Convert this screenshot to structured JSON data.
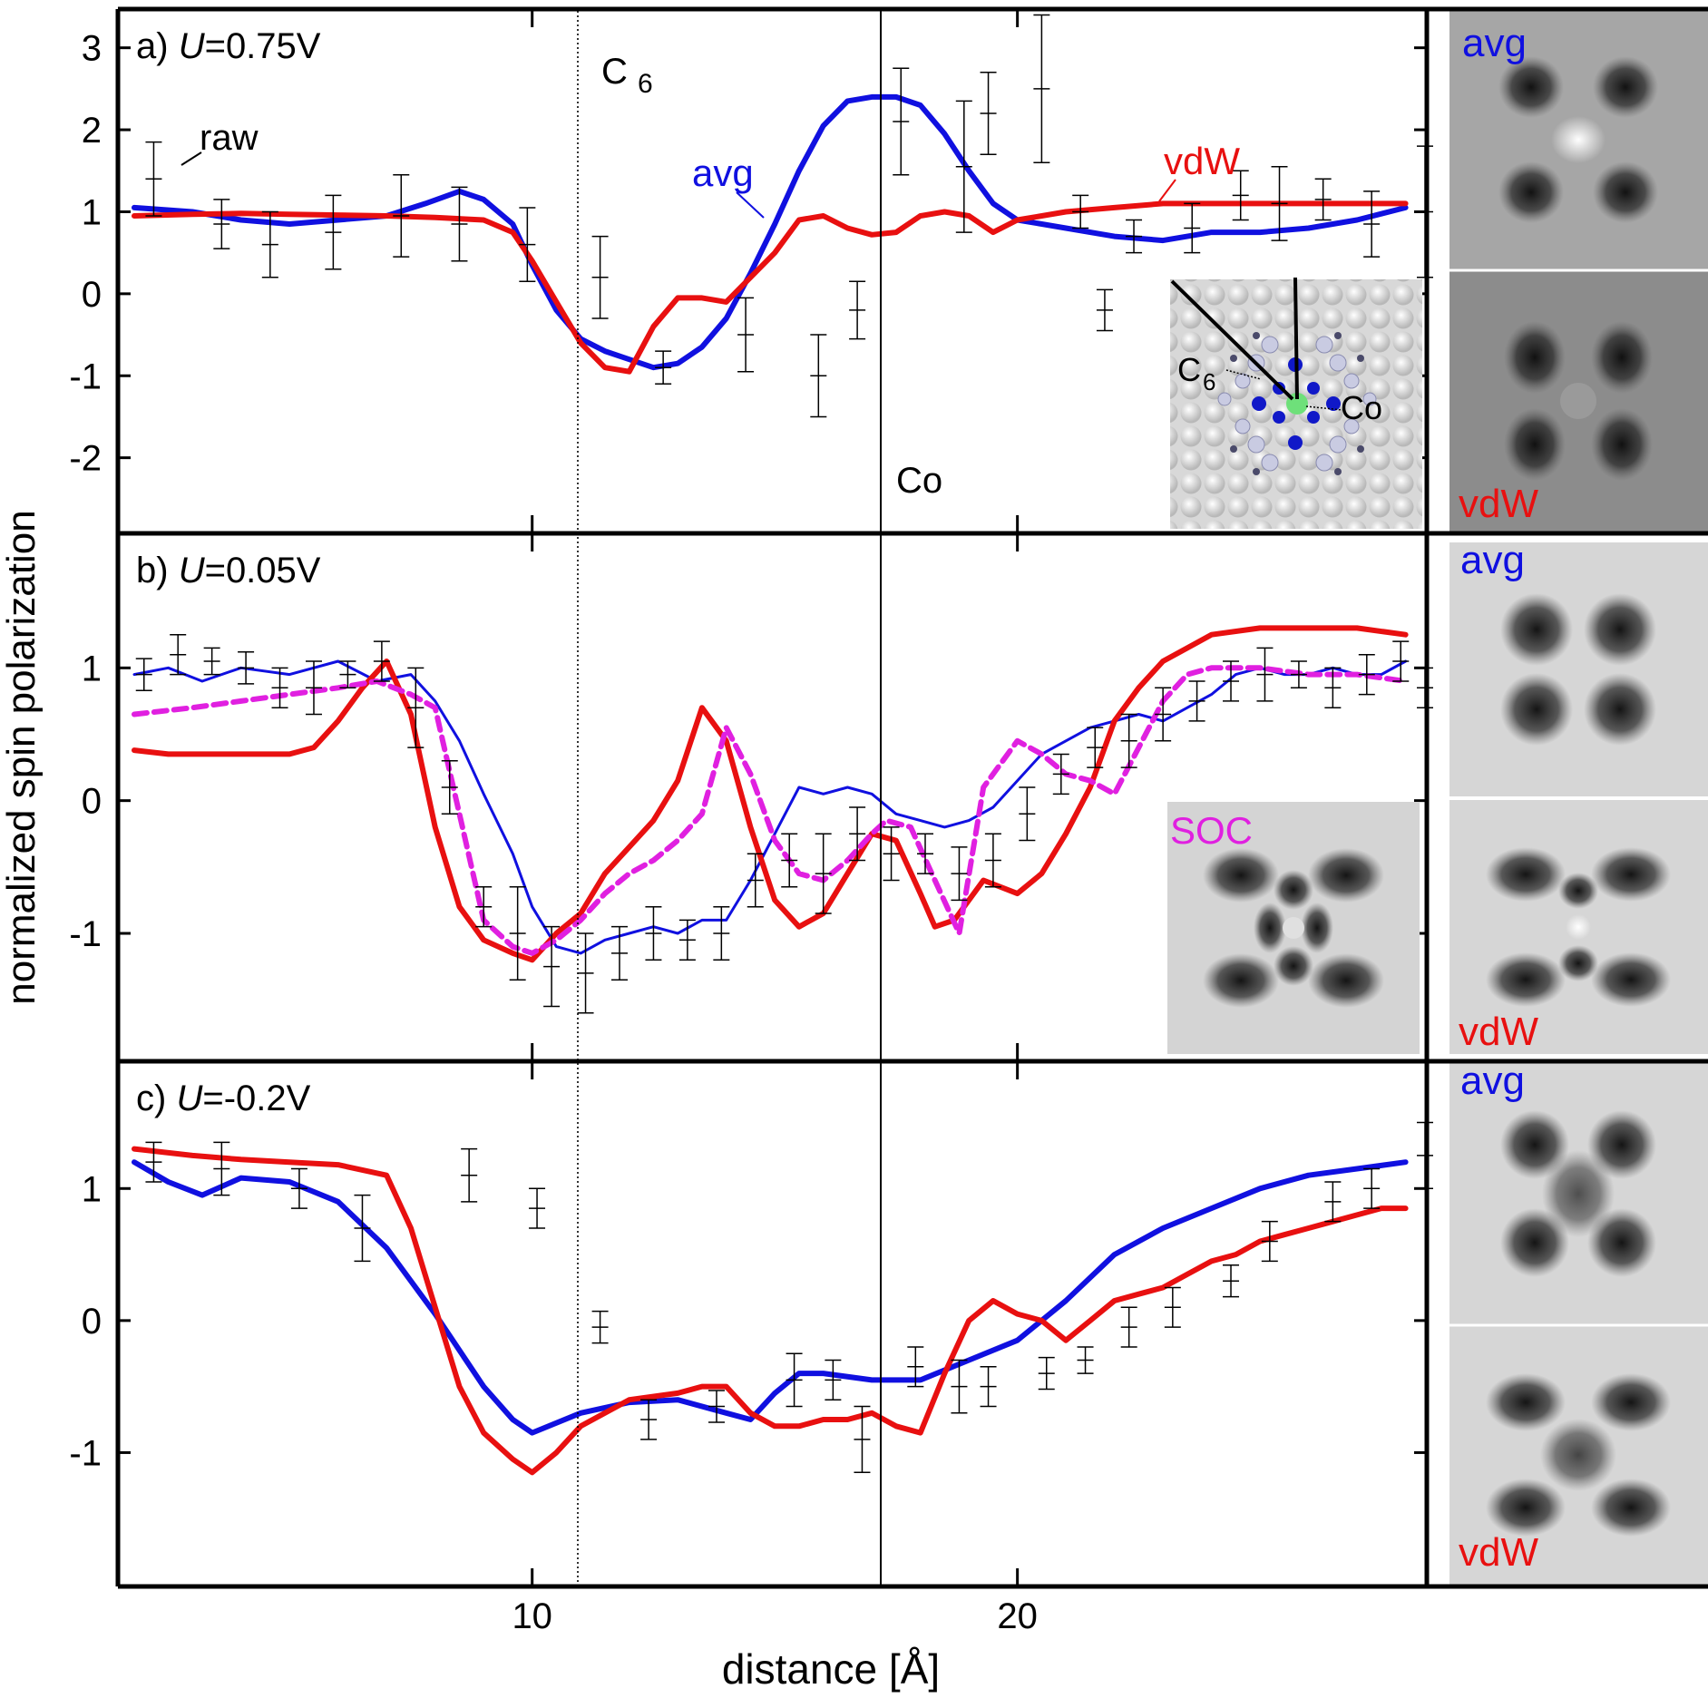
{
  "figure": {
    "ylabel": "normalized spin polarization",
    "xlabel": "distance [Å]",
    "x_ticks": [
      "10",
      "20"
    ],
    "colors": {
      "avg": "#1010e0",
      "vdw": "#e81010",
      "soc": "#e020e0",
      "raw": "#000000"
    }
  },
  "chart_data": [
    {
      "type": "line",
      "panel": "a",
      "label_prefix": "a)",
      "label_var": "U",
      "label_value": "=0.75V",
      "xlim": [
        1.5,
        28.4
      ],
      "ylim": [
        -2.9,
        3.45
      ],
      "y_ticks": [
        "3",
        "2",
        "1",
        "0",
        "-1",
        "-2"
      ],
      "y_tick_values": [
        3,
        2,
        1,
        0,
        -1,
        -2
      ],
      "annotations": {
        "c6": "C",
        "c6_sub": "6",
        "co": "Co",
        "raw": "raw",
        "avg": "avg",
        "vdw": "vdW"
      },
      "series": [
        {
          "name": "avg",
          "x": [
            1.8,
            3,
            4,
            5,
            6,
            7,
            7.8,
            8.5,
            9,
            9.6,
            10,
            10.5,
            11,
            11.5,
            12,
            12.5,
            13,
            13.5,
            14,
            14.5,
            15,
            15.5,
            16,
            16.5,
            17,
            17.5,
            18,
            18.5,
            19,
            19.5,
            20,
            21,
            22,
            23,
            24,
            25,
            26,
            27,
            28
          ],
          "y": [
            1.05,
            1.0,
            0.9,
            0.85,
            0.9,
            0.95,
            1.1,
            1.25,
            1.15,
            0.85,
            0.35,
            -0.2,
            -0.55,
            -0.7,
            -0.8,
            -0.9,
            -0.85,
            -0.65,
            -0.3,
            0.25,
            0.85,
            1.5,
            2.05,
            2.35,
            2.4,
            2.4,
            2.3,
            1.95,
            1.5,
            1.1,
            0.9,
            0.8,
            0.7,
            0.65,
            0.75,
            0.75,
            0.8,
            0.9,
            1.05
          ]
        },
        {
          "name": "vdW",
          "x": [
            1.8,
            3,
            4,
            5,
            6,
            7,
            8,
            9,
            9.6,
            10,
            10.5,
            11,
            11.5,
            12,
            12.5,
            13,
            13.5,
            14,
            14.5,
            15,
            15.5,
            16,
            16.5,
            17,
            17.5,
            18,
            18.5,
            19,
            19.5,
            20,
            21,
            22,
            23,
            24,
            25,
            26,
            27,
            28
          ],
          "y": [
            0.95,
            0.97,
            0.98,
            0.97,
            0.96,
            0.95,
            0.93,
            0.9,
            0.75,
            0.4,
            -0.1,
            -0.6,
            -0.9,
            -0.95,
            -0.4,
            -0.05,
            -0.05,
            -0.1,
            0.2,
            0.5,
            0.9,
            0.95,
            0.8,
            0.72,
            0.75,
            0.95,
            1.0,
            0.95,
            0.75,
            0.9,
            1.0,
            1.05,
            1.1,
            1.1,
            1.1,
            1.1,
            1.1,
            1.1
          ]
        },
        {
          "name": "raw",
          "x": [
            2.2,
            3.6,
            4.6,
            5.9,
            7.3,
            8.5,
            9.9,
            11.4,
            12.7,
            14.4,
            15.9,
            16.7,
            17.6,
            18.9,
            19.4,
            20.5,
            21.3,
            21.8,
            22.4,
            23.6,
            24.6,
            25.4,
            26.3,
            27.3,
            28.4
          ],
          "y": [
            1.4,
            0.85,
            0.6,
            0.75,
            0.95,
            0.85,
            0.6,
            0.2,
            -0.9,
            -0.5,
            -1.0,
            -0.2,
            2.1,
            1.55,
            2.2,
            2.5,
            1.0,
            -0.2,
            0.7,
            0.8,
            1.2,
            1.1,
            1.15,
            0.85,
            1.0
          ],
          "err": [
            0.45,
            0.3,
            0.4,
            0.45,
            0.5,
            0.45,
            0.45,
            0.5,
            0.2,
            0.45,
            0.5,
            0.35,
            0.65,
            0.8,
            0.5,
            0.9,
            0.2,
            0.25,
            0.2,
            0.3,
            0.3,
            0.45,
            0.25,
            0.4,
            0.8
          ]
        }
      ]
    },
    {
      "type": "line",
      "panel": "b",
      "label_prefix": "b)",
      "label_var": "U",
      "label_value": "=0.05V",
      "xlim": [
        1.5,
        28.4
      ],
      "ylim": [
        -1.95,
        2.0
      ],
      "y_ticks": [
        "1",
        "0",
        "-1"
      ],
      "y_tick_values": [
        1,
        0,
        -1
      ],
      "annotations": {
        "soc": "SOC"
      },
      "series": [
        {
          "name": "avg",
          "x": [
            1.8,
            2.5,
            3.2,
            4,
            5,
            6,
            6.8,
            7.5,
            8,
            8.5,
            9,
            9.6,
            10,
            10.5,
            11,
            11.5,
            12,
            12.5,
            13,
            13.5,
            14,
            14.5,
            15,
            15.5,
            16,
            16.5,
            17,
            17.5,
            18,
            18.5,
            19,
            19.5,
            20,
            20.5,
            21,
            21.5,
            22,
            22.5,
            23,
            23.5,
            24,
            24.5,
            25,
            25.5,
            26,
            26.5,
            27,
            27.5,
            28
          ],
          "y": [
            0.95,
            1.0,
            0.9,
            1.0,
            0.95,
            1.05,
            0.9,
            0.95,
            0.75,
            0.45,
            0.05,
            -0.4,
            -0.8,
            -1.1,
            -1.15,
            -1.05,
            -1.0,
            -0.95,
            -1.0,
            -0.9,
            -0.9,
            -0.6,
            -0.25,
            0.1,
            0.05,
            0.1,
            0.05,
            -0.1,
            -0.15,
            -0.2,
            -0.15,
            -0.05,
            0.15,
            0.35,
            0.45,
            0.55,
            0.6,
            0.65,
            0.6,
            0.7,
            0.8,
            0.95,
            1.0,
            0.95,
            0.95,
            1.0,
            0.95,
            0.95,
            1.05
          ]
        },
        {
          "name": "vdW",
          "x": [
            1.8,
            2.5,
            3.2,
            4,
            5,
            5.5,
            6,
            6.5,
            7,
            7.5,
            8,
            8.5,
            9,
            9.6,
            10,
            10.5,
            11,
            11.5,
            12,
            12.5,
            13,
            13.5,
            14,
            14.5,
            15,
            15.5,
            16,
            16.5,
            17,
            17.5,
            18,
            18.3,
            18.7,
            19.3,
            20,
            20.5,
            21,
            21.5,
            22,
            22.5,
            23,
            23.5,
            24,
            25,
            26,
            27,
            28
          ],
          "y": [
            0.38,
            0.35,
            0.35,
            0.35,
            0.35,
            0.4,
            0.6,
            0.85,
            1.05,
            0.65,
            -0.2,
            -0.8,
            -1.05,
            -1.15,
            -1.2,
            -1.0,
            -0.85,
            -0.55,
            -0.35,
            -0.15,
            0.15,
            0.7,
            0.45,
            -0.2,
            -0.75,
            -0.95,
            -0.85,
            -0.55,
            -0.25,
            -0.3,
            -0.7,
            -0.95,
            -0.9,
            -0.6,
            -0.7,
            -0.55,
            -0.25,
            0.1,
            0.6,
            0.85,
            1.05,
            1.15,
            1.25,
            1.3,
            1.3,
            1.3,
            1.25
          ]
        },
        {
          "name": "SOC",
          "dashed": true,
          "x": [
            1.8,
            3,
            4,
            5,
            6,
            6.8,
            7.5,
            8,
            8.5,
            9,
            9.6,
            10,
            10.5,
            11,
            11.5,
            12,
            12.5,
            13,
            13.5,
            14,
            14.5,
            15,
            15.5,
            16,
            16.5,
            17,
            17.3,
            17.8,
            18.3,
            18.8,
            19.3,
            20,
            20.5,
            21,
            21.5,
            22,
            22.5,
            23,
            23.5,
            24,
            25,
            26,
            27,
            28
          ],
          "y": [
            0.65,
            0.7,
            0.75,
            0.8,
            0.85,
            0.9,
            0.8,
            0.7,
            -0.1,
            -0.9,
            -1.1,
            -1.15,
            -1.05,
            -0.9,
            -0.7,
            -0.55,
            -0.45,
            -0.3,
            -0.1,
            0.55,
            0.2,
            -0.3,
            -0.55,
            -0.6,
            -0.45,
            -0.25,
            -0.15,
            -0.2,
            -0.6,
            -1.0,
            0.1,
            0.45,
            0.35,
            0.2,
            0.15,
            0.05,
            0.4,
            0.75,
            0.95,
            1.0,
            1.0,
            0.95,
            0.95,
            0.9
          ]
        },
        {
          "name": "raw",
          "x": [
            2,
            2.7,
            3.4,
            4.1,
            4.8,
            5.5,
            6.2,
            6.9,
            7.6,
            8.3,
            9,
            9.7,
            10.4,
            11.1,
            11.8,
            12.5,
            13.2,
            13.9,
            14.6,
            15.3,
            16,
            16.7,
            17.4,
            18.1,
            18.8,
            19.5,
            20.2,
            20.9,
            21.6,
            22.3,
            23,
            23.7,
            24.4,
            25.1,
            25.8,
            26.5,
            27.2,
            27.9,
            28.4
          ],
          "y": [
            0.95,
            1.1,
            1.05,
            1.0,
            0.85,
            0.85,
            0.95,
            1.05,
            0.7,
            0.1,
            -0.8,
            -1.0,
            -1.25,
            -1.3,
            -1.15,
            -1.0,
            -1.05,
            -1.0,
            -0.6,
            -0.45,
            -0.55,
            -0.25,
            -0.4,
            -0.4,
            -0.55,
            -0.45,
            -0.1,
            0.2,
            0.4,
            0.45,
            0.65,
            0.75,
            0.9,
            0.95,
            0.95,
            0.85,
            0.95,
            1.05,
            0.85
          ],
          "err": [
            0.12,
            0.15,
            0.1,
            0.12,
            0.15,
            0.2,
            0.1,
            0.15,
            0.3,
            0.2,
            0.15,
            0.35,
            0.3,
            0.3,
            0.2,
            0.2,
            0.15,
            0.2,
            0.2,
            0.2,
            0.3,
            0.2,
            0.2,
            0.15,
            0.2,
            0.2,
            0.2,
            0.15,
            0.15,
            0.2,
            0.2,
            0.15,
            0.15,
            0.2,
            0.1,
            0.15,
            0.15,
            0.15,
            0.15
          ]
        }
      ]
    },
    {
      "type": "line",
      "panel": "c",
      "label_prefix": "c)",
      "label_var": "U",
      "label_value": "=-0.2V",
      "xlim": [
        1.5,
        28.4
      ],
      "ylim": [
        -2.0,
        1.95
      ],
      "y_ticks": [
        "1",
        "0",
        "-1"
      ],
      "y_tick_values": [
        1,
        0,
        -1
      ],
      "annotations": {},
      "series": [
        {
          "name": "avg",
          "x": [
            1.8,
            2.5,
            3.2,
            4,
            5,
            6,
            7,
            8,
            9,
            9.6,
            10,
            11,
            12,
            13,
            14,
            14.5,
            15,
            15.5,
            16,
            17,
            18,
            19,
            20,
            21,
            22,
            23,
            24,
            25,
            26,
            27,
            28
          ],
          "y": [
            1.2,
            1.05,
            0.95,
            1.08,
            1.05,
            0.9,
            0.55,
            0.05,
            -0.5,
            -0.75,
            -0.85,
            -0.7,
            -0.62,
            -0.6,
            -0.7,
            -0.75,
            -0.55,
            -0.4,
            -0.4,
            -0.45,
            -0.45,
            -0.3,
            -0.15,
            0.15,
            0.5,
            0.7,
            0.85,
            1.0,
            1.1,
            1.15,
            1.2
          ]
        },
        {
          "name": "vdW",
          "x": [
            1.8,
            3,
            4,
            5,
            6,
            7,
            7.5,
            8,
            8.5,
            9,
            9.6,
            10,
            10.5,
            11,
            12,
            13,
            13.5,
            14,
            14.5,
            15,
            15.5,
            16,
            16.5,
            17,
            17.5,
            18,
            18.5,
            19,
            19.5,
            20,
            20.5,
            21,
            21.5,
            22,
            22.5,
            23,
            23.5,
            24,
            24.5,
            25,
            25.5,
            26,
            26.5,
            27,
            27.5,
            28
          ],
          "y": [
            1.3,
            1.25,
            1.22,
            1.2,
            1.18,
            1.1,
            0.7,
            0.1,
            -0.5,
            -0.85,
            -1.05,
            -1.15,
            -1.0,
            -0.8,
            -0.6,
            -0.55,
            -0.5,
            -0.5,
            -0.7,
            -0.8,
            -0.8,
            -0.75,
            -0.75,
            -0.7,
            -0.8,
            -0.85,
            -0.4,
            0.0,
            0.15,
            0.05,
            0.0,
            -0.15,
            0.0,
            0.15,
            0.2,
            0.25,
            0.35,
            0.45,
            0.5,
            0.6,
            0.65,
            0.7,
            0.75,
            0.8,
            0.85,
            0.85
          ]
        },
        {
          "name": "raw",
          "x": [
            2.2,
            3.6,
            5.2,
            6.5,
            8.7,
            10.1,
            11.4,
            12.4,
            13.8,
            15.4,
            16.2,
            16.8,
            17.9,
            18.8,
            19.4,
            20.6,
            21.4,
            22.3,
            23.2,
            24.4,
            25.2,
            26.5,
            27.3,
            28.4
          ],
          "y": [
            1.2,
            1.15,
            1.0,
            0.7,
            1.1,
            0.85,
            -0.05,
            -0.75,
            -0.65,
            -0.45,
            -0.45,
            -0.9,
            -0.35,
            -0.5,
            -0.5,
            -0.4,
            -0.3,
            -0.05,
            0.1,
            0.3,
            0.6,
            0.9,
            1.0,
            1.25
          ],
          "err": [
            0.15,
            0.2,
            0.15,
            0.25,
            0.2,
            0.15,
            0.12,
            0.15,
            0.12,
            0.2,
            0.15,
            0.25,
            0.15,
            0.2,
            0.15,
            0.12,
            0.1,
            0.15,
            0.15,
            0.12,
            0.15,
            0.15,
            0.15,
            0.25
          ]
        }
      ]
    }
  ],
  "side_images": [
    {
      "top_label": "avg",
      "bottom_label": "vdW"
    },
    {
      "top_label": "avg",
      "bottom_label": "vdW"
    },
    {
      "top_label": "avg",
      "bottom_label": "vdW"
    }
  ],
  "inset_a": {
    "c6": "C",
    "c6_sub": "6",
    "co": "Co"
  }
}
